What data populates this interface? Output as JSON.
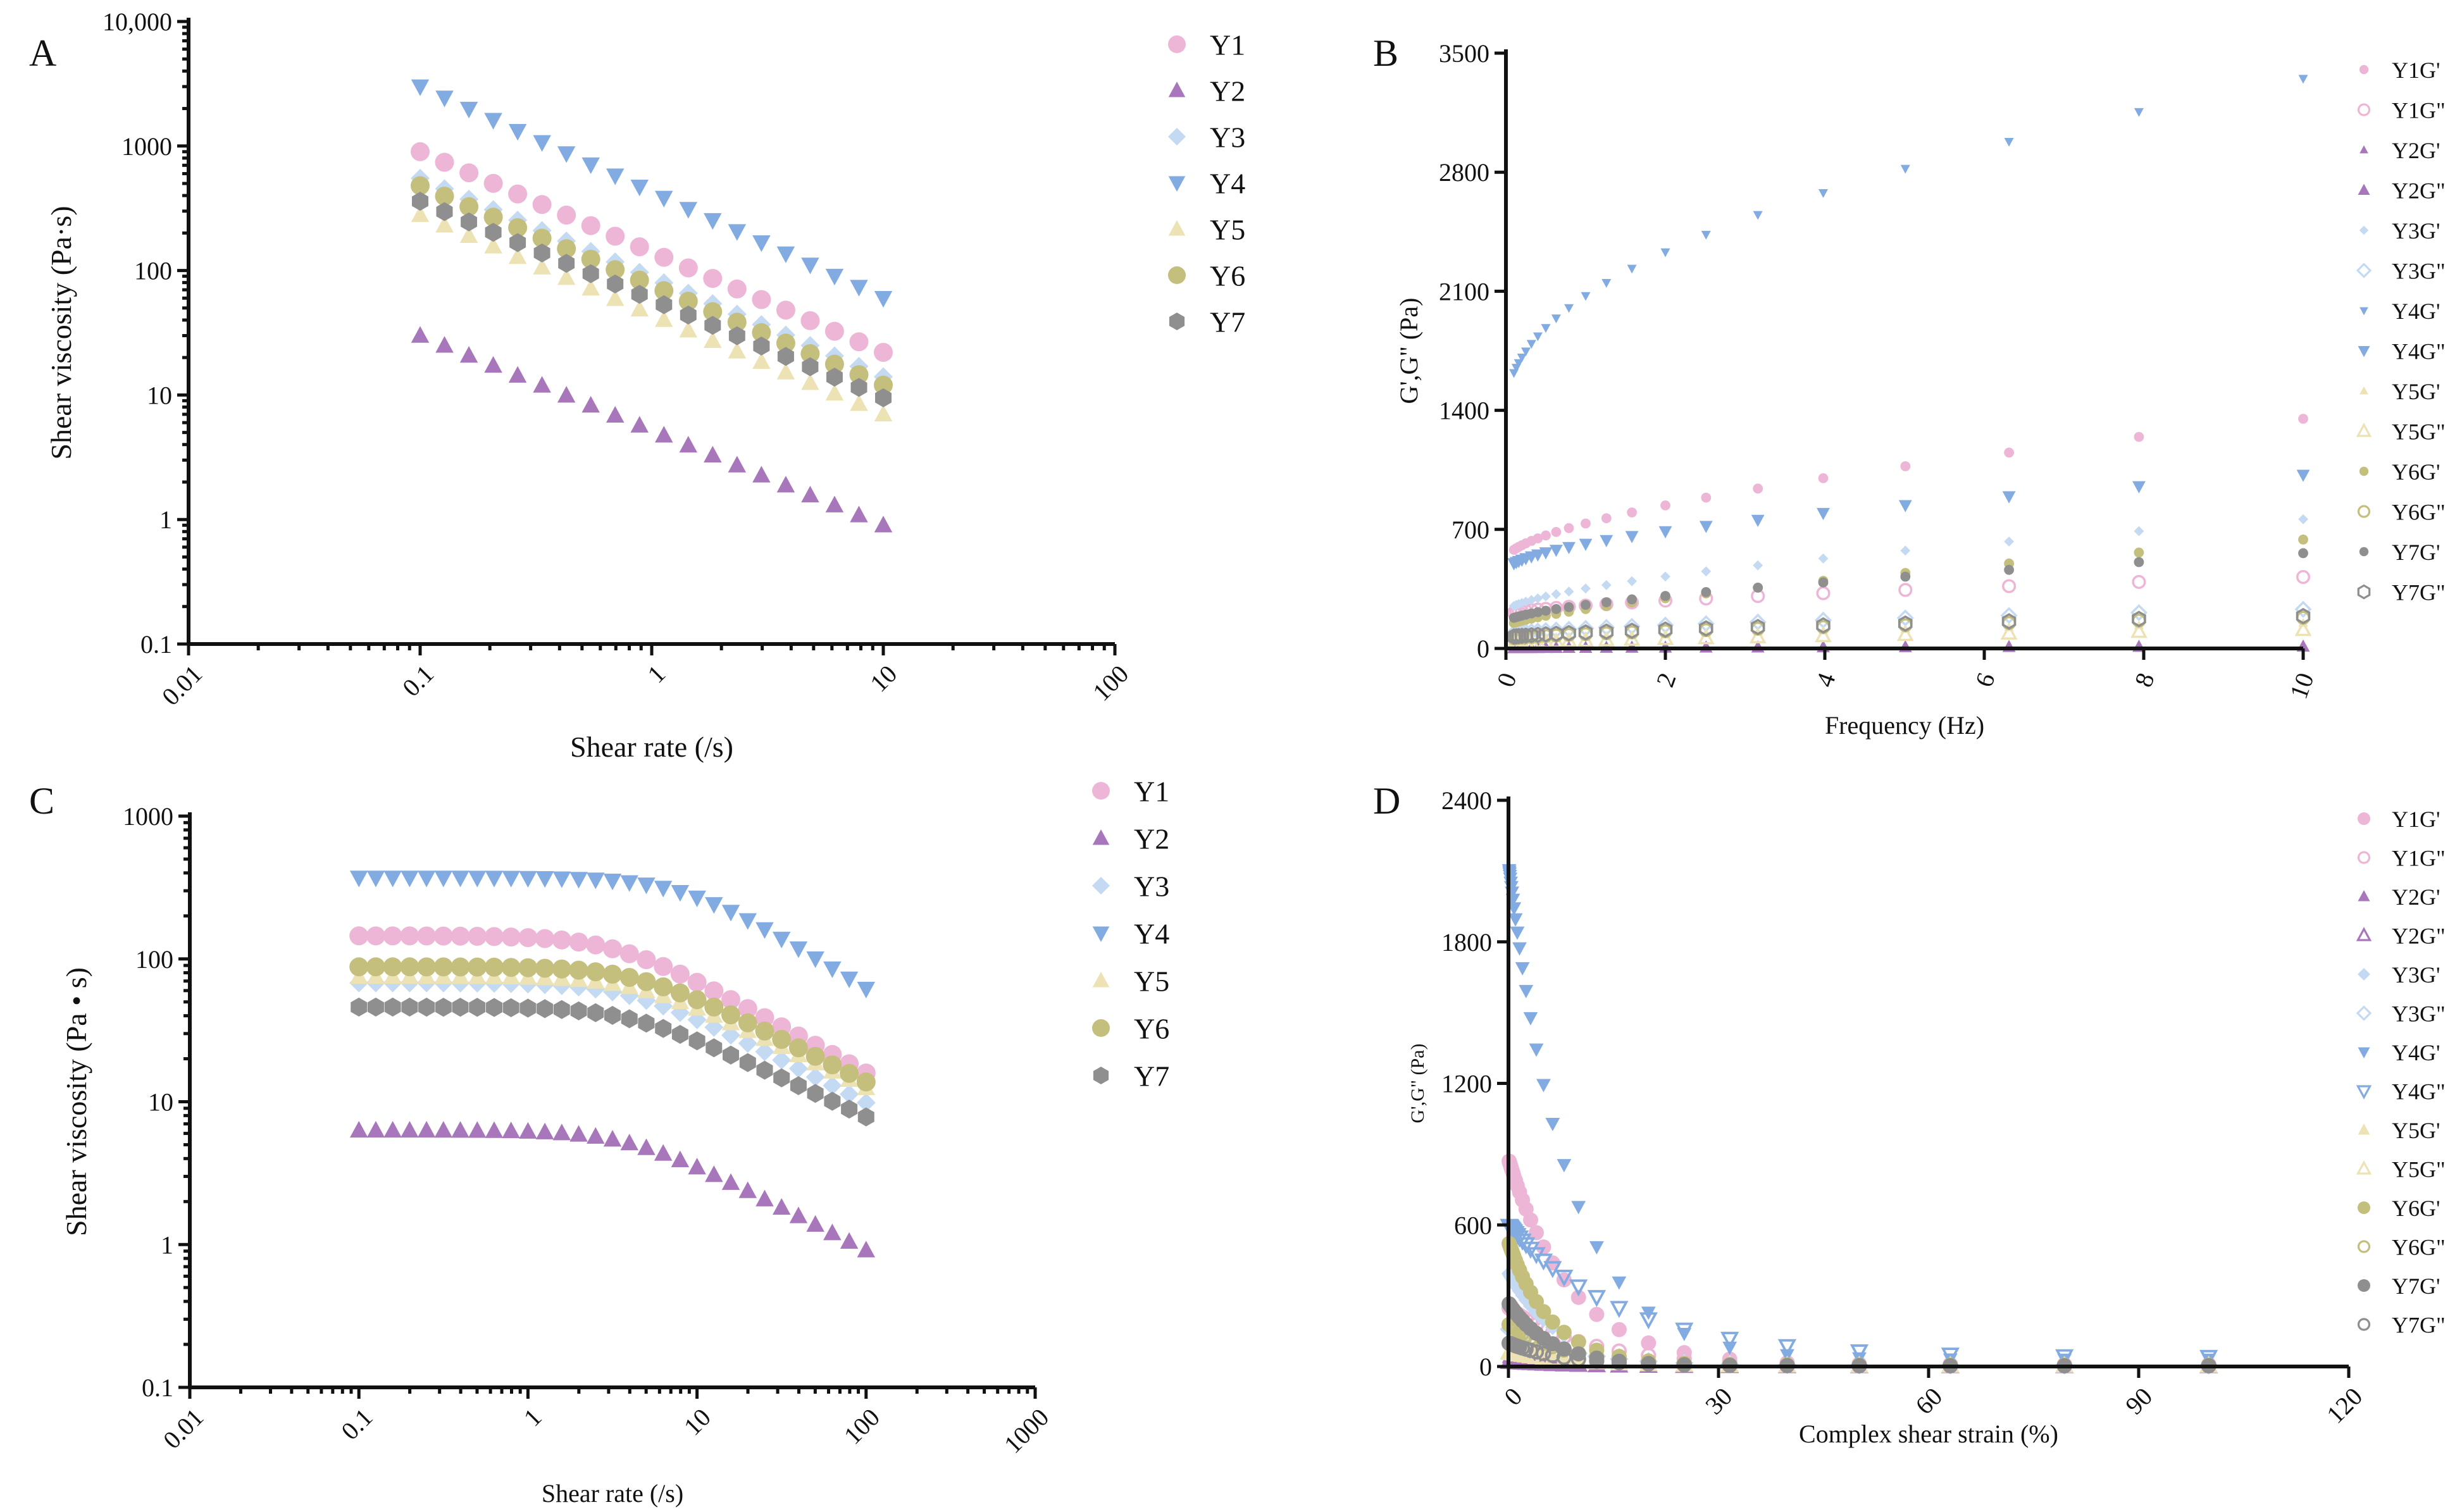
{
  "figure": {
    "colors": {
      "Y1": "#eeb6d6",
      "Y2": "#a877bb",
      "Y3": "#c4d9f2",
      "Y4": "#82abe1",
      "Y5": "#ece2b4",
      "Y6": "#c4bf7c",
      "Y7": "#8f8f8f"
    }
  },
  "chart_data": [
    {
      "id": "A",
      "panel_label": "A",
      "type": "scatter",
      "xscale": "log",
      "yscale": "log",
      "xlim": [
        0.01,
        100
      ],
      "ylim": [
        0.1,
        10000
      ],
      "xticks": [
        "0.01",
        "0.1",
        "1",
        "10",
        "100"
      ],
      "xtick_values": [
        0.01,
        0.1,
        1,
        10,
        100
      ],
      "yticks": [
        "0.1",
        "1",
        "10",
        "100",
        "1000",
        "10,000"
      ],
      "ytick_values": [
        0.1,
        1,
        10,
        100,
        1000,
        10000
      ],
      "xlabel": "Shear rate (/s)",
      "ylabel": "Shear viscosity (Pa·s)",
      "legend_position": "right",
      "x_range": [
        0.1,
        10
      ],
      "n_points": 20,
      "series": [
        {
          "name": "Y1",
          "marker": "circle",
          "filled": true,
          "y_start": 900,
          "y_end": 22
        },
        {
          "name": "Y2",
          "marker": "triangle-up",
          "filled": true,
          "y_start": 30,
          "y_end": 0.9
        },
        {
          "name": "Y3",
          "marker": "diamond",
          "filled": true,
          "y_start": 550,
          "y_end": 14
        },
        {
          "name": "Y4",
          "marker": "triangle-down",
          "filled": true,
          "y_start": 3000,
          "y_end": 60
        },
        {
          "name": "Y5",
          "marker": "triangle-up",
          "filled": true,
          "y_start": 280,
          "y_end": 7
        },
        {
          "name": "Y6",
          "marker": "circle",
          "filled": true,
          "y_start": 480,
          "y_end": 12
        },
        {
          "name": "Y7",
          "marker": "hexagon",
          "filled": true,
          "y_start": 360,
          "y_end": 9.5
        }
      ]
    },
    {
      "id": "B",
      "panel_label": "B",
      "type": "scatter",
      "xscale": "linear",
      "yscale": "linear",
      "xlim": [
        0,
        10
      ],
      "ylim": [
        0,
        3500
      ],
      "xticks": [
        "0",
        "2",
        "4",
        "6",
        "8",
        "10"
      ],
      "xtick_values": [
        0,
        2,
        4,
        6,
        8,
        10
      ],
      "yticks": [
        "0",
        "700",
        "1400",
        "2100",
        "2800",
        "3500"
      ],
      "ytick_values": [
        0,
        700,
        1400,
        2100,
        2800,
        3500
      ],
      "xlabel": "Frequency (Hz)",
      "ylabel": "G',G\" (Pa)",
      "legend_position": "right",
      "x_points": [
        0.1,
        0.13,
        0.16,
        0.2,
        0.25,
        0.32,
        0.4,
        0.5,
        0.63,
        0.79,
        1.0,
        1.26,
        1.58,
        2.0,
        2.51,
        3.16,
        3.98,
        5.01,
        6.31,
        7.94,
        10.0
      ],
      "series": [
        {
          "name": "Y1G'",
          "base": "Y1",
          "marker": "circle",
          "filled": true,
          "small": true,
          "y_start": 580,
          "y_end": 1350,
          "exp": 0.6
        },
        {
          "name": "Y1G\"",
          "base": "Y1",
          "marker": "circle",
          "filled": false,
          "small": false,
          "y_start": 210,
          "y_end": 420,
          "exp": 0.6
        },
        {
          "name": "Y2G'",
          "base": "Y2",
          "marker": "triangle-up",
          "filled": true,
          "small": true,
          "y_start": 5,
          "y_end": 15,
          "exp": 0.6
        },
        {
          "name": "Y2G\"",
          "base": "Y2",
          "marker": "triangle-up",
          "filled": true,
          "small": false,
          "y_start": 3,
          "y_end": 12,
          "exp": 0.6
        },
        {
          "name": "Y3G'",
          "base": "Y3",
          "marker": "diamond",
          "filled": true,
          "small": true,
          "y_start": 250,
          "y_end": 760,
          "exp": 0.6
        },
        {
          "name": "Y3G\"",
          "base": "Y3",
          "marker": "diamond",
          "filled": false,
          "small": false,
          "y_start": 90,
          "y_end": 230,
          "exp": 0.6
        },
        {
          "name": "Y4G'",
          "base": "Y4",
          "marker": "triangle-down",
          "filled": true,
          "small": true,
          "y_start": 1620,
          "y_end": 3350,
          "exp": 0.45
        },
        {
          "name": "Y4G\"",
          "base": "Y4",
          "marker": "triangle-down",
          "filled": true,
          "small": false,
          "y_start": 500,
          "y_end": 1020,
          "exp": 0.55
        },
        {
          "name": "Y5G'",
          "base": "Y5",
          "marker": "triangle-up",
          "filled": true,
          "small": true,
          "y_start": 50,
          "y_end": 150,
          "exp": 0.6
        },
        {
          "name": "Y5G\"",
          "base": "Y5",
          "marker": "triangle-up",
          "filled": false,
          "small": false,
          "y_start": 30,
          "y_end": 110,
          "exp": 0.6
        },
        {
          "name": "Y6G'",
          "base": "Y6",
          "marker": "circle",
          "filled": true,
          "small": true,
          "y_start": 150,
          "y_end": 640,
          "exp": 0.7
        },
        {
          "name": "Y6G\"",
          "base": "Y6",
          "marker": "circle",
          "filled": false,
          "small": false,
          "y_start": 60,
          "y_end": 180,
          "exp": 0.6
        },
        {
          "name": "Y7G'",
          "base": "Y7",
          "marker": "circle",
          "filled": true,
          "small": true,
          "y_start": 180,
          "y_end": 560,
          "exp": 0.6
        },
        {
          "name": "Y7G\"",
          "base": "Y7",
          "marker": "hexagon",
          "filled": false,
          "small": false,
          "y_start": 70,
          "y_end": 190,
          "exp": 0.6
        }
      ]
    },
    {
      "id": "C",
      "panel_label": "C",
      "type": "scatter",
      "xscale": "log",
      "yscale": "log",
      "xlim": [
        0.01,
        1000
      ],
      "ylim": [
        0.1,
        1000
      ],
      "xticks": [
        "0.01",
        "0.1",
        "1",
        "10",
        "100",
        "1000"
      ],
      "xtick_values": [
        0.01,
        0.1,
        1,
        10,
        100,
        1000
      ],
      "yticks": [
        "0.1",
        "1",
        "10",
        "100",
        "1000"
      ],
      "ytick_values": [
        0.1,
        1,
        10,
        100,
        1000
      ],
      "xlabel": "Shear rate (/s)",
      "ylabel": "Shear viscosity (Pa • s)",
      "legend_position": "right",
      "x_range": [
        0.1,
        100
      ],
      "n_points": 31,
      "series": [
        {
          "name": "Y1",
          "marker": "circle",
          "filled": true,
          "eta0": 145,
          "lambda": 0.3,
          "n": 0.35
        },
        {
          "name": "Y2",
          "marker": "triangle-up",
          "filled": true,
          "eta0": 6.3,
          "lambda": 0.25,
          "n": 0.4
        },
        {
          "name": "Y3",
          "marker": "diamond",
          "filled": true,
          "eta0": 68,
          "lambda": 0.25,
          "n": 0.4
        },
        {
          "name": "Y4",
          "marker": "triangle-down",
          "filled": true,
          "eta0": 370,
          "lambda": 0.12,
          "n": 0.28
        },
        {
          "name": "Y5",
          "marker": "triangle-up",
          "filled": true,
          "eta0": 75,
          "lambda": 0.22,
          "n": 0.42
        },
        {
          "name": "Y6",
          "marker": "circle",
          "filled": true,
          "eta0": 88,
          "lambda": 0.22,
          "n": 0.4
        },
        {
          "name": "Y7",
          "marker": "hexagon",
          "filled": true,
          "eta0": 46,
          "lambda": 0.25,
          "n": 0.45
        }
      ]
    },
    {
      "id": "D",
      "panel_label": "D",
      "type": "scatter",
      "xscale": "linear",
      "yscale": "linear",
      "xlim": [
        0,
        120
      ],
      "ylim": [
        0,
        2400
      ],
      "xticks": [
        "0",
        "30",
        "60",
        "90",
        "120"
      ],
      "xtick_values": [
        0,
        30,
        60,
        90,
        120
      ],
      "yticks": [
        "0",
        "600",
        "1200",
        "1800",
        "2400"
      ],
      "ytick_values": [
        0,
        600,
        1200,
        1800,
        2400
      ],
      "xlabel": "Complex shear strain (%)",
      "ylabel": "G',G\" (Pa)",
      "legend_position": "right",
      "x_points": [
        0.1,
        0.13,
        0.16,
        0.2,
        0.25,
        0.32,
        0.4,
        0.5,
        0.63,
        0.79,
        1.0,
        1.26,
        1.58,
        2.0,
        2.51,
        3.16,
        3.98,
        5.01,
        6.31,
        7.94,
        10.0,
        12.6,
        15.8,
        20.0,
        25.1,
        31.6,
        39.8,
        50.1,
        63.1,
        79.4,
        100.0
      ],
      "series": [
        {
          "name": "Y1G'",
          "base": "Y1",
          "marker": "circle",
          "filled": true,
          "y0": 880,
          "tau": 9,
          "y_inf": 5
        },
        {
          "name": "Y1G\"",
          "base": "Y1",
          "marker": "circle",
          "filled": false,
          "y0": 250,
          "tau": 11,
          "y_inf": 8
        },
        {
          "name": "Y2G'",
          "base": "Y2",
          "marker": "triangle-up",
          "filled": true,
          "y0": 40,
          "tau": 6,
          "y_inf": 1
        },
        {
          "name": "Y2G\"",
          "base": "Y2",
          "marker": "triangle-up",
          "filled": false,
          "y0": 20,
          "tau": 8,
          "y_inf": 1
        },
        {
          "name": "Y3G'",
          "base": "Y3",
          "marker": "diamond",
          "filled": true,
          "y0": 400,
          "tau": 7,
          "y_inf": 5
        },
        {
          "name": "Y3G\"",
          "base": "Y3",
          "marker": "diamond",
          "filled": false,
          "y0": 160,
          "tau": 9,
          "y_inf": 5
        },
        {
          "name": "Y4G'",
          "base": "Y4",
          "marker": "triangle-down",
          "filled": true,
          "y0": 2130,
          "tau": 8.5,
          "y_inf": 30
        },
        {
          "name": "Y4G\"",
          "base": "Y4",
          "marker": "triangle-down",
          "filled": false,
          "y0": 600,
          "tau": 16,
          "y_inf": 40
        },
        {
          "name": "Y5G'",
          "base": "Y5",
          "marker": "triangle-up",
          "filled": true,
          "y0": 120,
          "tau": 7,
          "y_inf": 3
        },
        {
          "name": "Y5G\"",
          "base": "Y5",
          "marker": "triangle-up",
          "filled": false,
          "y0": 60,
          "tau": 9,
          "y_inf": 3
        },
        {
          "name": "Y6G'",
          "base": "Y6",
          "marker": "circle",
          "filled": true,
          "y0": 530,
          "tau": 6,
          "y_inf": 5
        },
        {
          "name": "Y6G\"",
          "base": "Y6",
          "marker": "circle",
          "filled": false,
          "y0": 180,
          "tau": 8,
          "y_inf": 5
        },
        {
          "name": "Y7G'",
          "base": "Y7",
          "marker": "circle",
          "filled": true,
          "y0": 270,
          "tau": 6,
          "y_inf": 3
        },
        {
          "name": "Y7G\"",
          "base": "Y7",
          "marker": "circle",
          "filled": false,
          "y0": 100,
          "tau": 8,
          "y_inf": 3
        }
      ]
    }
  ]
}
